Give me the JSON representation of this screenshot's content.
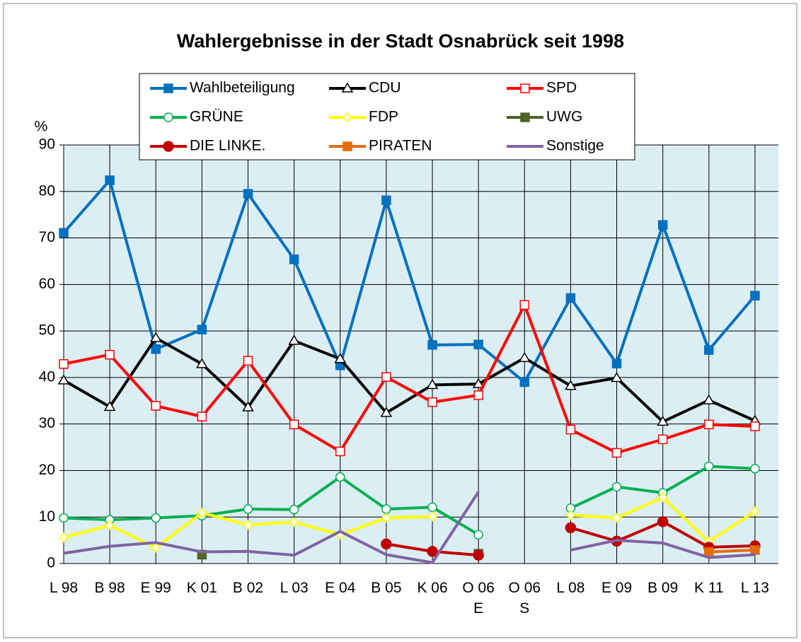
{
  "chart_data": {
    "type": "line",
    "title": "Wahlergebnisse in der Stadt Osnabrück seit 1998",
    "y_label": "%",
    "categories": [
      "L 98",
      "B 98",
      "E 99",
      "K 01",
      "B 02",
      "L 03",
      "E 04",
      "B 05",
      "K 06",
      "O 06\nE",
      "O 06\nS",
      "L 08",
      "E 09",
      "B 09",
      "K 11",
      "L 13"
    ],
    "ylim": [
      0,
      90
    ],
    "yticks": [
      0,
      10,
      20,
      30,
      40,
      50,
      60,
      70,
      80,
      90
    ],
    "grid": true,
    "series": [
      {
        "name": "Wahlbeteiligung",
        "color": "#0070c0",
        "marker": "square-filled",
        "values": [
          71.1,
          82.4,
          46.1,
          50.3,
          79.5,
          65.4,
          42.6,
          78.1,
          47.0,
          47.1,
          39.0,
          57.1,
          43.0,
          72.8,
          45.9,
          57.6
        ]
      },
      {
        "name": "CDU",
        "color": "#000000",
        "marker": "triangle",
        "values": [
          39.4,
          33.7,
          48.5,
          42.9,
          33.6,
          47.9,
          44.0,
          32.4,
          38.4,
          38.6,
          44.2,
          38.2,
          39.9,
          30.5,
          35.1,
          30.7
        ]
      },
      {
        "name": "SPD",
        "color": "#ff0000",
        "marker": "square",
        "values": [
          42.9,
          44.9,
          33.9,
          31.6,
          43.6,
          29.9,
          24.1,
          40.1,
          34.7,
          36.2,
          55.6,
          28.8,
          23.8,
          26.7,
          29.9,
          29.5
        ]
      },
      {
        "name": "GRÜNE",
        "color": "#00b050",
        "marker": "circle",
        "values": [
          9.8,
          9.4,
          9.8,
          10.3,
          11.7,
          11.6,
          18.6,
          11.7,
          12.1,
          6.2,
          null,
          11.9,
          16.5,
          15.2,
          20.9,
          20.4
        ]
      },
      {
        "name": "FDP",
        "color": "#ffff00",
        "marker": "diamond",
        "values": [
          5.6,
          8.2,
          3.4,
          10.9,
          8.3,
          8.9,
          6.2,
          9.8,
          10.1,
          null,
          null,
          10.4,
          9.8,
          14.2,
          4.7,
          11.2
        ]
      },
      {
        "name": "UWG",
        "color": "#4f6228",
        "marker": "square-filled",
        "values": [
          null,
          null,
          null,
          1.9,
          null,
          null,
          null,
          null,
          null,
          2.1,
          null,
          null,
          null,
          null,
          null,
          null
        ]
      },
      {
        "name": "DIE LINKE.",
        "color": "#c00000",
        "marker": "circle-filled",
        "values": [
          null,
          null,
          null,
          null,
          null,
          null,
          null,
          4.2,
          2.6,
          1.8,
          null,
          7.7,
          4.8,
          9.0,
          3.5,
          3.8
        ]
      },
      {
        "name": "PIRATEN",
        "color": "#e46c0a",
        "marker": "square-filled",
        "values": [
          null,
          null,
          null,
          null,
          null,
          null,
          null,
          null,
          null,
          null,
          null,
          null,
          null,
          null,
          2.5,
          2.9
        ]
      },
      {
        "name": "Sonstige",
        "color": "#8064a2",
        "marker": "none",
        "values": [
          2.2,
          3.7,
          4.5,
          2.5,
          2.6,
          1.8,
          6.9,
          1.9,
          0.2,
          15.4,
          null,
          2.9,
          5.0,
          4.4,
          1.3,
          1.9
        ]
      }
    ]
  }
}
